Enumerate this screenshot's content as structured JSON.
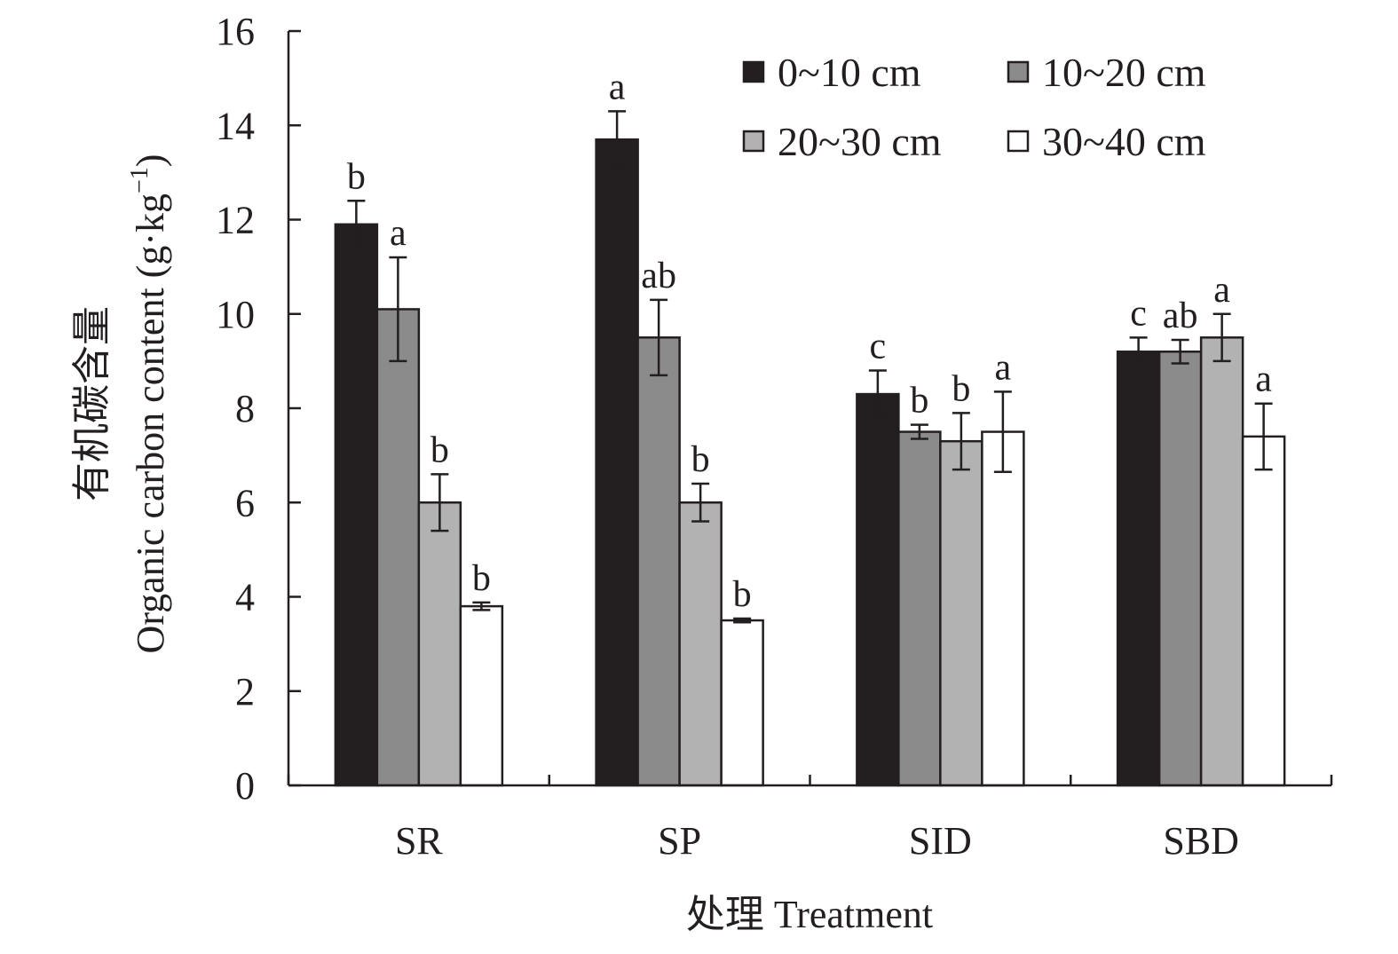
{
  "chart_data": {
    "type": "bar",
    "categories": [
      "SR",
      "SP",
      "SID",
      "SBD"
    ],
    "series": [
      {
        "name": "0~10 cm",
        "color": "#231f20",
        "values": [
          11.9,
          13.7,
          8.3,
          9.2
        ],
        "errors": [
          0.5,
          0.6,
          0.5,
          0.3
        ],
        "letters": [
          "b",
          "a",
          "c",
          "c"
        ]
      },
      {
        "name": "10~20 cm",
        "color": "#8c8b8b",
        "values": [
          10.1,
          9.5,
          7.5,
          9.2
        ],
        "errors": [
          1.1,
          0.8,
          0.15,
          0.25
        ],
        "letters": [
          "a",
          "ab",
          "b",
          "ab"
        ]
      },
      {
        "name": "20~30 cm",
        "color": "#b2b2b2",
        "values": [
          6.0,
          6.0,
          7.3,
          9.5
        ],
        "errors": [
          0.6,
          0.4,
          0.6,
          0.5
        ],
        "letters": [
          "b",
          "b",
          "b",
          "a"
        ]
      },
      {
        "name": "30~40 cm",
        "color": "#ffffff",
        "values": [
          3.8,
          3.5,
          7.5,
          7.4
        ],
        "errors": [
          0.08,
          0.04,
          0.85,
          0.7
        ],
        "letters": [
          "b",
          "b",
          "a",
          "a"
        ]
      }
    ],
    "ylim": [
      0,
      16
    ],
    "yticks": [
      0,
      2,
      4,
      6,
      8,
      10,
      12,
      14,
      16
    ],
    "ylabel_line1": "有机碳含量",
    "ylabel_line2": "Organic carbon content (g·kg",
    "ylabel_sup": "−1",
    "ylabel_close": ")",
    "xlabel": "处理 Treatment",
    "legend_position": "top-right",
    "grid": false
  }
}
